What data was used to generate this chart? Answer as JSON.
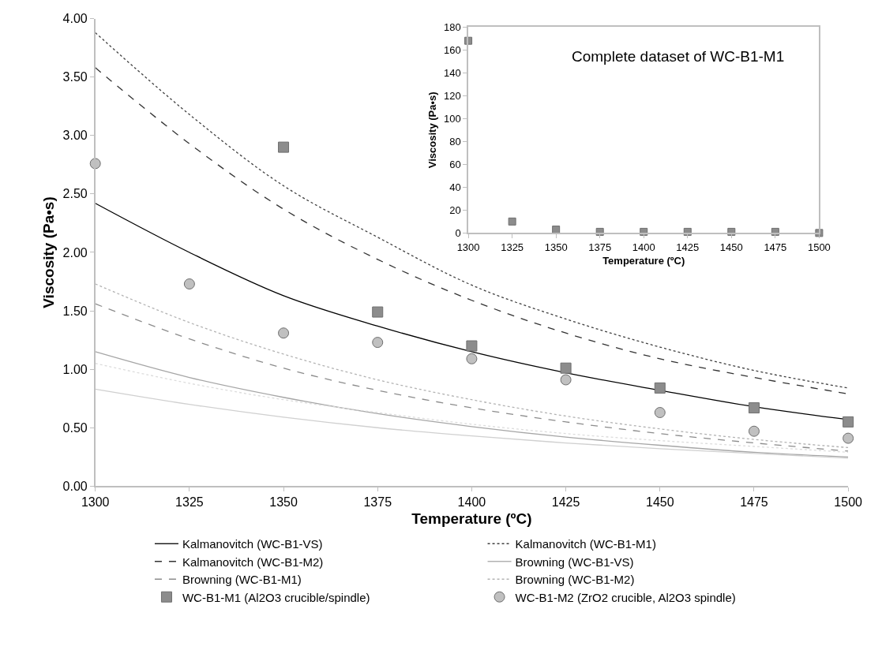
{
  "chart_data": [
    {
      "type": "line",
      "xlabel": "Temperature (ºC)",
      "ylabel": "Viscosity (Pa•s)",
      "x": [
        1300,
        1325,
        1350,
        1375,
        1400,
        1425,
        1450,
        1475,
        1500
      ],
      "xlim": [
        1300,
        1500
      ],
      "xticks": [
        1300,
        1325,
        1350,
        1375,
        1400,
        1425,
        1450,
        1475,
        1500
      ],
      "ylim": [
        0,
        4
      ],
      "yticks": [
        {
          "value": 0,
          "label": "0.00"
        },
        {
          "value": 0.5,
          "label": "0.50"
        },
        {
          "value": 1,
          "label": "1.00"
        },
        {
          "value": 1.5,
          "label": "1.50"
        },
        {
          "value": 2,
          "label": "2.00"
        },
        {
          "value": 2.5,
          "label": "2.50"
        },
        {
          "value": 3,
          "label": "3.00"
        },
        {
          "value": 3.5,
          "label": "3.50"
        },
        {
          "value": 4,
          "label": "4.00"
        }
      ],
      "legend": "bottom",
      "series": [
        {
          "name": "Kalmanovitch (WC-B1-VS)",
          "color": "#000000",
          "line_style": "solid",
          "marker": "none",
          "values": [
            2.42,
            2.0,
            1.63,
            1.37,
            1.15,
            0.97,
            0.82,
            0.68,
            0.57
          ]
        },
        {
          "name": "Kalmanovitch (WC-B1-M1)",
          "color": "#404040",
          "line_style": "dotted",
          "marker": "none",
          "values": [
            3.88,
            3.18,
            2.57,
            2.13,
            1.72,
            1.43,
            1.19,
            0.99,
            0.84
          ]
        },
        {
          "name": "Kalmanovitch (WC-B1-M2)",
          "color": "#333333",
          "line_style": "dashed",
          "marker": "none",
          "values": [
            3.58,
            2.93,
            2.37,
            1.94,
            1.59,
            1.31,
            1.09,
            0.93,
            0.79
          ]
        },
        {
          "name": "Browning (WC-B1-VS)",
          "color": "#a6a6a6",
          "line_style": "solid",
          "marker": "none",
          "values": [
            1.15,
            0.93,
            0.76,
            0.62,
            0.51,
            0.42,
            0.35,
            0.29,
            0.25
          ]
        },
        {
          "name": "Browning (WC-B1-M1)",
          "color": "#8c8c8c",
          "line_style": "dashed",
          "marker": "none",
          "values": [
            1.56,
            1.26,
            1.01,
            0.82,
            0.67,
            0.55,
            0.45,
            0.37,
            0.3
          ]
        },
        {
          "name": "Browning (WC-B1-M2)",
          "color": "#b3b3b3",
          "line_style": "dotted",
          "marker": "none",
          "values": [
            1.73,
            1.4,
            1.13,
            0.91,
            0.74,
            0.6,
            0.49,
            0.4,
            0.33
          ]
        },
        {
          "color": "#d0d0d0",
          "line_style": "solid",
          "marker": "none",
          "values": [
            0.83,
            0.7,
            0.59,
            0.5,
            0.43,
            0.37,
            0.32,
            0.28,
            0.24
          ]
        },
        {
          "color": "#dcdcdc",
          "line_style": "dotted",
          "marker": "none",
          "values": [
            1.05,
            0.88,
            0.74,
            0.63,
            0.53,
            0.45,
            0.39,
            0.34,
            0.29
          ]
        },
        {
          "name": "WC-B1-M1 (Al2O3 crucible/spindle)",
          "type": "scatter",
          "color": "#8c8c8c",
          "marker": "square",
          "values": [
            null,
            null,
            2.9,
            1.49,
            1.2,
            1.01,
            0.84,
            0.67,
            0.55
          ]
        },
        {
          "name": "WC-B1-M2 (ZrO2 crucible, Al2O3 spindle)",
          "type": "scatter",
          "color": "#c0c0c0",
          "marker": "circle",
          "values": [
            2.76,
            1.73,
            1.31,
            1.23,
            1.09,
            0.91,
            0.63,
            0.47,
            0.41
          ]
        }
      ]
    },
    {
      "type": "scatter",
      "title": "Complete dataset of WC-B1-M1",
      "xlabel": "Temperature (ºC)",
      "ylabel": "Viscosity (Pa•s)",
      "x": [
        1300,
        1325,
        1350,
        1375,
        1400,
        1425,
        1450,
        1475,
        1500
      ],
      "xlim": [
        1300,
        1500
      ],
      "xticks": [
        1300,
        1325,
        1350,
        1375,
        1400,
        1425,
        1450,
        1475,
        1500
      ],
      "ylim": [
        0,
        180
      ],
      "yticks": [
        0,
        20,
        40,
        60,
        80,
        100,
        120,
        140,
        160,
        180
      ],
      "legend": false,
      "marker": "square",
      "series": [
        {
          "color": "#8c8c8c",
          "values": [
            168,
            10,
            3,
            1,
            1,
            1,
            1,
            1,
            0
          ]
        }
      ]
    }
  ]
}
